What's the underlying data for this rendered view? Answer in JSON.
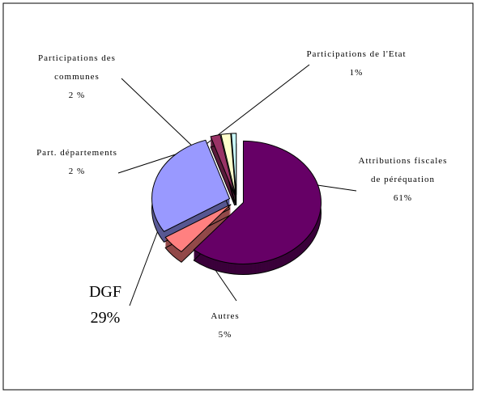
{
  "chart_data": {
    "type": "pie",
    "categories": [
      "Attributions fiscales de péréquation",
      "Autres",
      "DGF",
      "Part. départements",
      "Participations des communes",
      "Participations de l'Etat"
    ],
    "values": [
      61,
      5,
      29,
      2,
      2,
      1
    ],
    "value_labels": [
      "61%",
      "5%",
      "29%",
      "2 %",
      "2 %",
      "1%"
    ],
    "colors": [
      "#660066",
      "#ff8080",
      "#9999ff",
      "#993366",
      "#ffffcc",
      "#ccffff"
    ]
  }
}
